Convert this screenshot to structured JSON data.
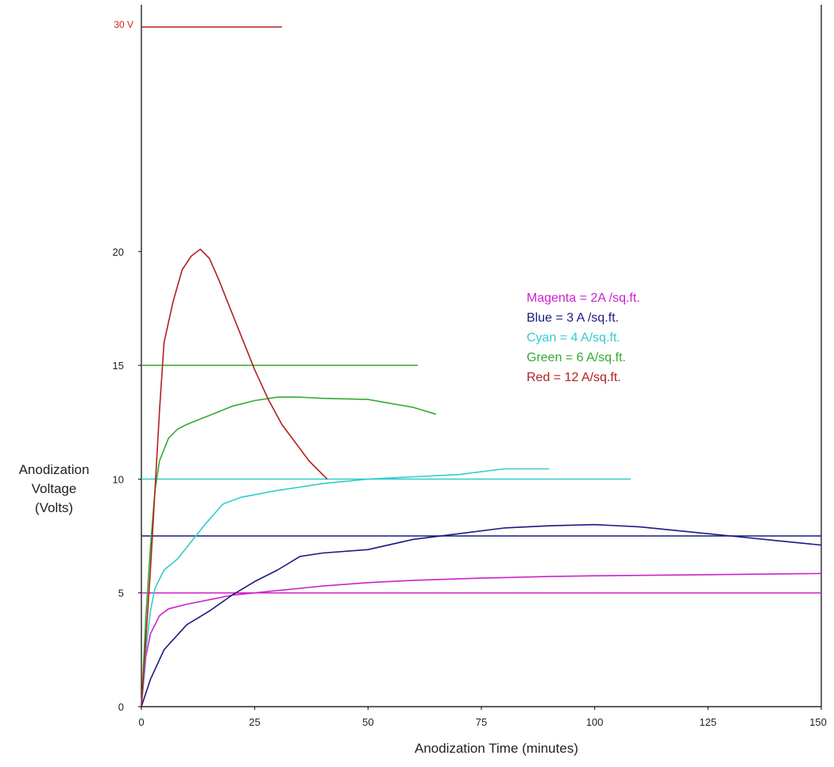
{
  "chart_data": {
    "type": "line",
    "title": "",
    "xlabel": "Anodization Time (minutes)",
    "ylabel_lines": [
      "Anodization",
      "Voltage",
      "(Volts)"
    ],
    "xlim": [
      0,
      150
    ],
    "ylim": [
      0,
      30
    ],
    "x_ticks": [
      {
        "value": 0,
        "label": "0"
      },
      {
        "value": 25,
        "label": "25"
      },
      {
        "value": 50,
        "label": "50"
      },
      {
        "value": 75,
        "label": "75"
      },
      {
        "value": 100,
        "label": "100"
      },
      {
        "value": 125,
        "label": "125"
      },
      {
        "value": 150,
        "label": "150"
      }
    ],
    "y_ticks": [
      {
        "value": 0,
        "label": "0"
      },
      {
        "value": 5,
        "label": "5"
      },
      {
        "value": 10,
        "label": "10"
      },
      {
        "value": 15,
        "label": "15"
      },
      {
        "value": 20,
        "label": "20"
      }
    ],
    "reference_label": {
      "value": 30,
      "label": "30 V",
      "x_end": 31
    },
    "grid": false,
    "legend_position": "right, mid-upper",
    "legend": [
      {
        "text": "Magenta = 2A /sq.ft.",
        "color": "#cc22cc"
      },
      {
        "text": "Blue = 3 A /sq.ft.",
        "color": "#1a1a80"
      },
      {
        "text": "Cyan = 4 A/sq.ft.",
        "color": "#33cccc"
      },
      {
        "text": "Green = 6 A/sq.ft.",
        "color": "#33aa33"
      },
      {
        "text": "Red = 12 A/sq.ft.",
        "color": "#b02020"
      }
    ],
    "series": [
      {
        "color": "#cc22cc",
        "points": [
          [
            0,
            0
          ],
          [
            1,
            2.2
          ],
          [
            2,
            3.2
          ],
          [
            4,
            4.0
          ],
          [
            6,
            4.3
          ],
          [
            10,
            4.5
          ],
          [
            15,
            4.7
          ],
          [
            20,
            4.9
          ],
          [
            30,
            5.1
          ],
          [
            40,
            5.3
          ],
          [
            50,
            5.45
          ],
          [
            60,
            5.55
          ],
          [
            75,
            5.65
          ],
          [
            90,
            5.72
          ],
          [
            100,
            5.75
          ],
          [
            125,
            5.8
          ],
          [
            150,
            5.85
          ]
        ],
        "reference_value": 5.0,
        "reference_range": [
          0,
          150
        ]
      },
      {
        "color": "#1a1a80",
        "points": [
          [
            0,
            0
          ],
          [
            2,
            1.2
          ],
          [
            5,
            2.5
          ],
          [
            10,
            3.6
          ],
          [
            15,
            4.2
          ],
          [
            20,
            4.9
          ],
          [
            25,
            5.5
          ],
          [
            30,
            6.0
          ],
          [
            35,
            6.6
          ],
          [
            40,
            6.75
          ],
          [
            50,
            6.9
          ],
          [
            60,
            7.35
          ],
          [
            70,
            7.6
          ],
          [
            80,
            7.85
          ],
          [
            90,
            7.95
          ],
          [
            100,
            8.0
          ],
          [
            110,
            7.9
          ],
          [
            120,
            7.7
          ],
          [
            130,
            7.5
          ],
          [
            140,
            7.3
          ],
          [
            150,
            7.1
          ]
        ],
        "reference_value": 7.5,
        "reference_range": [
          0,
          150
        ]
      },
      {
        "color": "#33cccc",
        "points": [
          [
            0,
            0
          ],
          [
            1,
            2.5
          ],
          [
            2,
            4.2
          ],
          [
            3,
            5.2
          ],
          [
            5,
            6.0
          ],
          [
            8,
            6.5
          ],
          [
            10,
            7.0
          ],
          [
            14,
            8.0
          ],
          [
            18,
            8.9
          ],
          [
            22,
            9.2
          ],
          [
            30,
            9.5
          ],
          [
            40,
            9.8
          ],
          [
            50,
            10.0
          ],
          [
            60,
            10.1
          ],
          [
            70,
            10.2
          ],
          [
            80,
            10.45
          ],
          [
            90,
            10.45
          ]
        ],
        "reference_value": 10.0,
        "reference_range": [
          0,
          108
        ]
      },
      {
        "color": "#33aa33",
        "points": [
          [
            0,
            0
          ],
          [
            1,
            4
          ],
          [
            2,
            7
          ],
          [
            3,
            9.5
          ],
          [
            4,
            10.8
          ],
          [
            6,
            11.8
          ],
          [
            8,
            12.2
          ],
          [
            10,
            12.4
          ],
          [
            15,
            12.8
          ],
          [
            20,
            13.2
          ],
          [
            25,
            13.45
          ],
          [
            30,
            13.6
          ],
          [
            35,
            13.6
          ],
          [
            40,
            13.55
          ],
          [
            50,
            13.5
          ],
          [
            60,
            13.15
          ],
          [
            65,
            12.85
          ]
        ],
        "reference_value": 15.0,
        "reference_range": [
          0,
          61
        ]
      },
      {
        "color": "#b02020",
        "points": [
          [
            0,
            0
          ],
          [
            2,
            6
          ],
          [
            4,
            13
          ],
          [
            5,
            16
          ],
          [
            7,
            17.8
          ],
          [
            9,
            19.2
          ],
          [
            11,
            19.8
          ],
          [
            13,
            20.1
          ],
          [
            15,
            19.7
          ],
          [
            17,
            18.8
          ],
          [
            19,
            17.8
          ],
          [
            21,
            16.8
          ],
          [
            23,
            15.8
          ],
          [
            25,
            14.8
          ],
          [
            28,
            13.5
          ],
          [
            31,
            12.4
          ],
          [
            34,
            11.6
          ],
          [
            37,
            10.8
          ],
          [
            41,
            10.0
          ]
        ],
        "reference_value": null,
        "reference_range": null
      }
    ]
  }
}
